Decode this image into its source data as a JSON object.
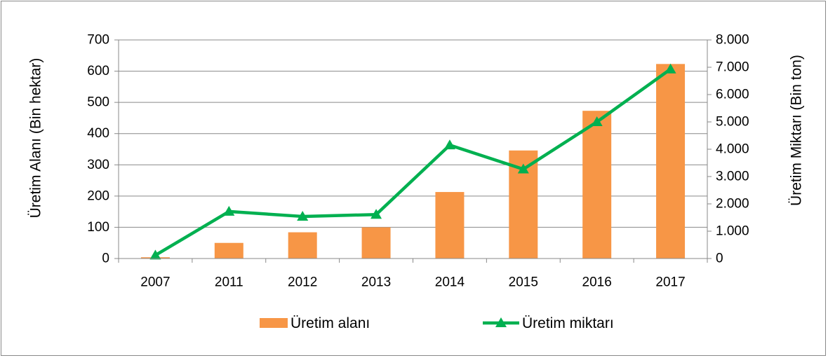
{
  "chart_data": {
    "type": "bar",
    "categories": [
      "2007",
      "2011",
      "2012",
      "2013",
      "2014",
      "2015",
      "2016",
      "2017"
    ],
    "series": [
      {
        "name": "Üretim alanı",
        "type": "bar",
        "axis": "left",
        "color": "#F79646",
        "values": [
          4,
          50,
          84,
          100,
          213,
          346,
          473,
          623
        ]
      },
      {
        "name": "Üretim miktarı",
        "type": "line",
        "axis": "right",
        "color": "#00B050",
        "marker": "triangle",
        "values": [
          120,
          1720,
          1540,
          1610,
          4150,
          3270,
          5000,
          6930
        ]
      }
    ],
    "ylabel": "Üretim Alanı  (Bin hektar)",
    "y2label": "Üretim Miktarı (Bin ton)",
    "ylim": [
      0,
      700
    ],
    "y2lim": [
      0,
      8000
    ],
    "yticks": [
      "0",
      "100",
      "200",
      "300",
      "400",
      "500",
      "600",
      "700"
    ],
    "y2ticks": [
      "0",
      "1.000",
      "2.000",
      "3.000",
      "4.000",
      "5.000",
      "6.000",
      "7.000",
      "8.000"
    ],
    "grid": true,
    "legend_position": "bottom"
  }
}
